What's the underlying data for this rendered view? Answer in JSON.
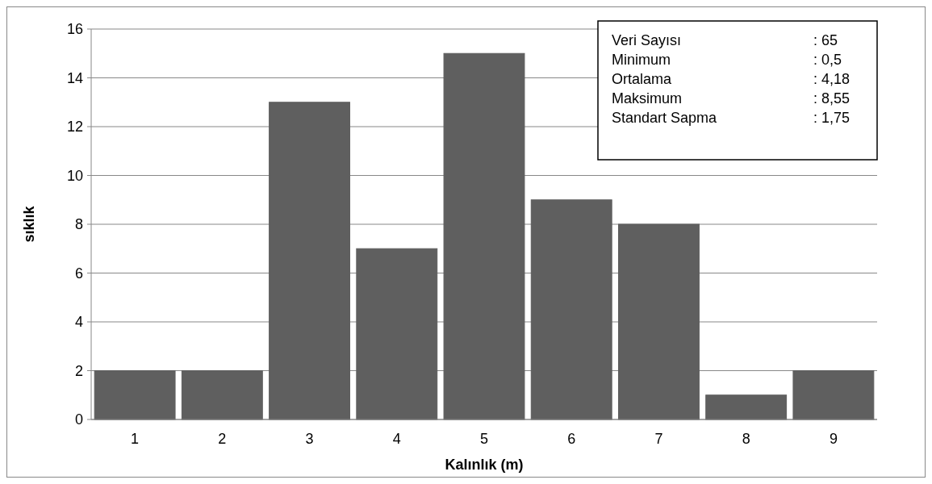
{
  "chart_data": {
    "type": "bar",
    "xlabel": "Kalınlık (m)",
    "ylabel": "sıklık",
    "categories": [
      "1",
      "2",
      "3",
      "4",
      "5",
      "6",
      "7",
      "8",
      "9"
    ],
    "values": [
      2,
      2,
      13,
      7,
      15,
      9,
      8,
      1,
      2
    ],
    "color": "#5f5f5f",
    "ylim": [
      0,
      16
    ],
    "yticks": [
      0,
      2,
      4,
      6,
      8,
      10,
      12,
      14,
      16
    ],
    "grid": "y",
    "annotations": [
      "Veri Sayısı : 65",
      "Minimum : 0,5",
      "Ortalama : 4,18",
      "Maksimum : 8,55",
      "Standart Sapma : 1,75"
    ]
  }
}
